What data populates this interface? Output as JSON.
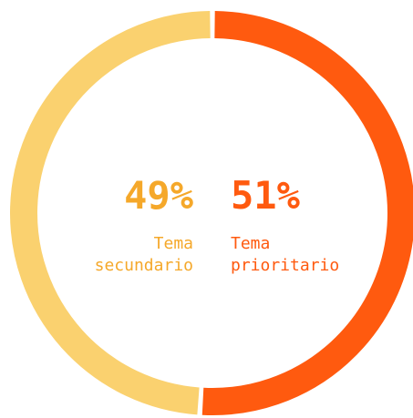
{
  "chart_data": {
    "type": "donut",
    "categories": [
      "Tema prioritario",
      "Tema secundario"
    ],
    "values": [
      51,
      49
    ],
    "value_labels": [
      "51%",
      "49%"
    ],
    "colors": [
      "#ff5a0f",
      "#fad16f"
    ],
    "text_colors": [
      "#ff5a0f",
      "#f5a82a"
    ]
  }
}
